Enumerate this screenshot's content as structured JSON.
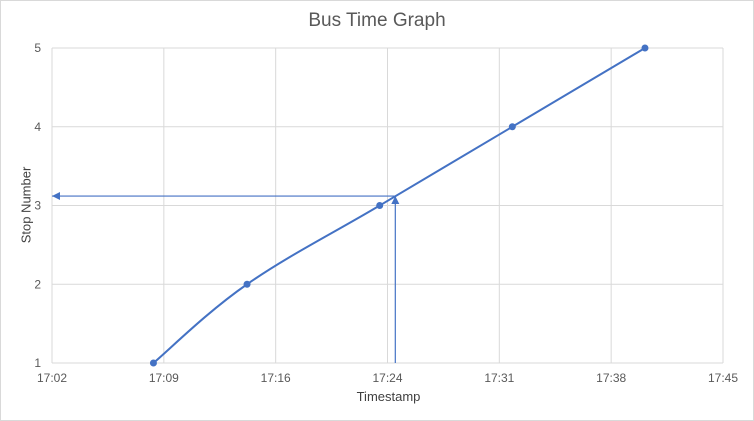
{
  "chart_data": {
    "type": "line",
    "title": "Bus Time Graph",
    "xlabel": "Timestamp",
    "ylabel": "Stop Number",
    "x_ticks": [
      "17:02",
      "17:09",
      "17:16",
      "17:24",
      "17:31",
      "17:38",
      "17:45"
    ],
    "xlim": [
      "17:02",
      "17:45"
    ],
    "ylim": [
      1,
      5
    ],
    "y_ticks": [
      1,
      2,
      3,
      4,
      5
    ],
    "grid": true,
    "series": [
      {
        "x": [
          "17:08.5",
          "17:14.5",
          "17:23",
          "17:31.5",
          "17:40"
        ],
        "y": [
          1,
          2,
          3,
          4,
          5
        ],
        "smooth": true,
        "markers": true
      }
    ],
    "annotations": [
      {
        "type": "arrow",
        "from": {
          "x": "17:24",
          "y": 1
        },
        "to": {
          "x": "17:24",
          "y": 3.12
        }
      },
      {
        "type": "arrow",
        "from": {
          "x": "17:24",
          "y": 3.12
        },
        "to": {
          "x": "17:02",
          "y": 3.12
        }
      }
    ],
    "colors": {
      "series": "#4472c4",
      "grid": "#d9d9d9",
      "text": "#595959"
    }
  }
}
